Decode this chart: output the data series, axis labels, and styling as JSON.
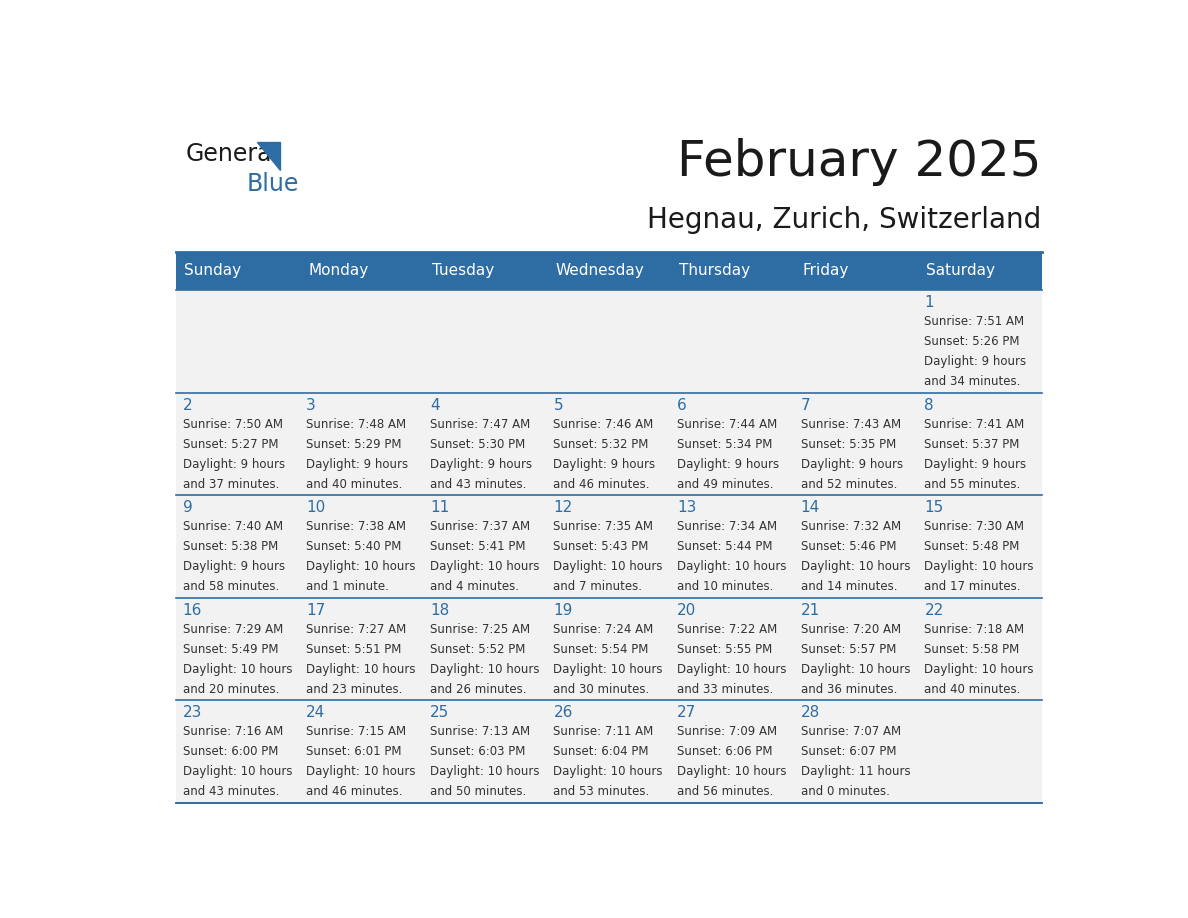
{
  "title": "February 2025",
  "subtitle": "Hegnau, Zurich, Switzerland",
  "days_of_week": [
    "Sunday",
    "Monday",
    "Tuesday",
    "Wednesday",
    "Thursday",
    "Friday",
    "Saturday"
  ],
  "header_bg": "#2E6DA4",
  "header_text": "#FFFFFF",
  "cell_bg": "#F2F2F2",
  "border_color": "#2E6DA4",
  "day_num_color": "#2E6DA4",
  "text_color": "#333333",
  "calendar_data": [
    [
      null,
      null,
      null,
      null,
      null,
      null,
      {
        "day": 1,
        "sunrise": "7:51 AM",
        "sunset": "5:26 PM",
        "daylight": "9 hours",
        "daylight2": "and 34 minutes."
      }
    ],
    [
      {
        "day": 2,
        "sunrise": "7:50 AM",
        "sunset": "5:27 PM",
        "daylight": "9 hours",
        "daylight2": "and 37 minutes."
      },
      {
        "day": 3,
        "sunrise": "7:48 AM",
        "sunset": "5:29 PM",
        "daylight": "9 hours",
        "daylight2": "and 40 minutes."
      },
      {
        "day": 4,
        "sunrise": "7:47 AM",
        "sunset": "5:30 PM",
        "daylight": "9 hours",
        "daylight2": "and 43 minutes."
      },
      {
        "day": 5,
        "sunrise": "7:46 AM",
        "sunset": "5:32 PM",
        "daylight": "9 hours",
        "daylight2": "and 46 minutes."
      },
      {
        "day": 6,
        "sunrise": "7:44 AM",
        "sunset": "5:34 PM",
        "daylight": "9 hours",
        "daylight2": "and 49 minutes."
      },
      {
        "day": 7,
        "sunrise": "7:43 AM",
        "sunset": "5:35 PM",
        "daylight": "9 hours",
        "daylight2": "and 52 minutes."
      },
      {
        "day": 8,
        "sunrise": "7:41 AM",
        "sunset": "5:37 PM",
        "daylight": "9 hours",
        "daylight2": "and 55 minutes."
      }
    ],
    [
      {
        "day": 9,
        "sunrise": "7:40 AM",
        "sunset": "5:38 PM",
        "daylight": "9 hours",
        "daylight2": "and 58 minutes."
      },
      {
        "day": 10,
        "sunrise": "7:38 AM",
        "sunset": "5:40 PM",
        "daylight": "10 hours",
        "daylight2": "and 1 minute."
      },
      {
        "day": 11,
        "sunrise": "7:37 AM",
        "sunset": "5:41 PM",
        "daylight": "10 hours",
        "daylight2": "and 4 minutes."
      },
      {
        "day": 12,
        "sunrise": "7:35 AM",
        "sunset": "5:43 PM",
        "daylight": "10 hours",
        "daylight2": "and 7 minutes."
      },
      {
        "day": 13,
        "sunrise": "7:34 AM",
        "sunset": "5:44 PM",
        "daylight": "10 hours",
        "daylight2": "and 10 minutes."
      },
      {
        "day": 14,
        "sunrise": "7:32 AM",
        "sunset": "5:46 PM",
        "daylight": "10 hours",
        "daylight2": "and 14 minutes."
      },
      {
        "day": 15,
        "sunrise": "7:30 AM",
        "sunset": "5:48 PM",
        "daylight": "10 hours",
        "daylight2": "and 17 minutes."
      }
    ],
    [
      {
        "day": 16,
        "sunrise": "7:29 AM",
        "sunset": "5:49 PM",
        "daylight": "10 hours",
        "daylight2": "and 20 minutes."
      },
      {
        "day": 17,
        "sunrise": "7:27 AM",
        "sunset": "5:51 PM",
        "daylight": "10 hours",
        "daylight2": "and 23 minutes."
      },
      {
        "day": 18,
        "sunrise": "7:25 AM",
        "sunset": "5:52 PM",
        "daylight": "10 hours",
        "daylight2": "and 26 minutes."
      },
      {
        "day": 19,
        "sunrise": "7:24 AM",
        "sunset": "5:54 PM",
        "daylight": "10 hours",
        "daylight2": "and 30 minutes."
      },
      {
        "day": 20,
        "sunrise": "7:22 AM",
        "sunset": "5:55 PM",
        "daylight": "10 hours",
        "daylight2": "and 33 minutes."
      },
      {
        "day": 21,
        "sunrise": "7:20 AM",
        "sunset": "5:57 PM",
        "daylight": "10 hours",
        "daylight2": "and 36 minutes."
      },
      {
        "day": 22,
        "sunrise": "7:18 AM",
        "sunset": "5:58 PM",
        "daylight": "10 hours",
        "daylight2": "and 40 minutes."
      }
    ],
    [
      {
        "day": 23,
        "sunrise": "7:16 AM",
        "sunset": "6:00 PM",
        "daylight": "10 hours",
        "daylight2": "and 43 minutes."
      },
      {
        "day": 24,
        "sunrise": "7:15 AM",
        "sunset": "6:01 PM",
        "daylight": "10 hours",
        "daylight2": "and 46 minutes."
      },
      {
        "day": 25,
        "sunrise": "7:13 AM",
        "sunset": "6:03 PM",
        "daylight": "10 hours",
        "daylight2": "and 50 minutes."
      },
      {
        "day": 26,
        "sunrise": "7:11 AM",
        "sunset": "6:04 PM",
        "daylight": "10 hours",
        "daylight2": "and 53 minutes."
      },
      {
        "day": 27,
        "sunrise": "7:09 AM",
        "sunset": "6:06 PM",
        "daylight": "10 hours",
        "daylight2": "and 56 minutes."
      },
      {
        "day": 28,
        "sunrise": "7:07 AM",
        "sunset": "6:07 PM",
        "daylight": "11 hours",
        "daylight2": "and 0 minutes."
      },
      null
    ]
  ]
}
